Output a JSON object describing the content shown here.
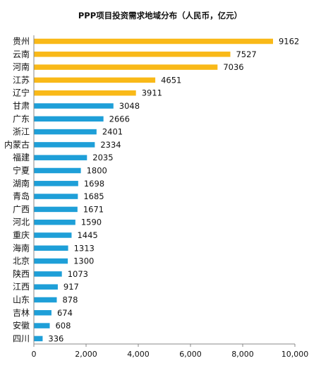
{
  "colors": {
    "top5": "#F9B918",
    "others": "#1E9FD8"
  },
  "chart_data": {
    "type": "bar",
    "orientation": "horizontal",
    "title": "PPP项目投资需求地域分布（人民币，亿元）",
    "categories": [
      "贵州",
      "云南",
      "河南",
      "江苏",
      "辽宁",
      "甘肃",
      "广东",
      "浙江",
      "内蒙古",
      "福建",
      "宁夏",
      "湖南",
      "青岛",
      "广西",
      "河北",
      "重庆",
      "海南",
      "北京",
      "陕西",
      "江西",
      "山东",
      "吉林",
      "安徽",
      "四川"
    ],
    "values": [
      9162,
      7527,
      7036,
      4651,
      3911,
      3048,
      2666,
      2401,
      2334,
      2035,
      1800,
      1698,
      1685,
      1671,
      1590,
      1445,
      1313,
      1300,
      1073,
      917,
      878,
      674,
      608,
      336
    ],
    "value_labels": [
      "9162",
      "7527",
      "7036",
      "4651",
      "3911",
      "3048",
      "2666",
      "2401",
      "2334",
      "2035",
      "1800",
      "1698",
      "1685",
      "1671",
      "1590",
      "1445",
      "1313",
      "1300",
      "1073",
      "917",
      "878",
      "674",
      "608",
      "336"
    ],
    "highlight_count": 5,
    "xlim": [
      0,
      10000
    ],
    "x_ticks": [
      0,
      2000,
      4000,
      6000,
      8000,
      10000
    ],
    "x_tick_labels": [
      "0",
      "2,000",
      "4,000",
      "6,000",
      "8,000",
      "10,000"
    ],
    "xlabel": "",
    "ylabel": "",
    "grid": false,
    "legend": "none"
  }
}
